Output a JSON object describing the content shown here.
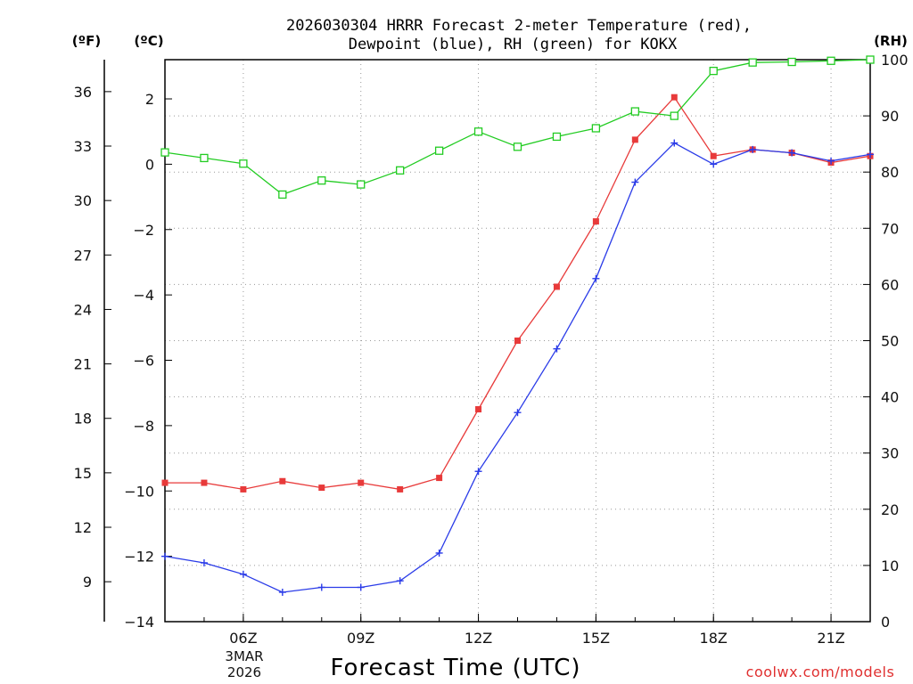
{
  "chart_data": {
    "type": "line",
    "title": "2026030304 HRRR Forecast 2-meter Temperature (red),",
    "subtitle": "Dewpoint (blue), RH (green) for KOKX",
    "xlabel": "Forecast Time (UTC)",
    "credit": "coolwx.com/models",
    "units": {
      "fahrenheit": "(ºF)",
      "celsius": "(ºC)",
      "rh": "(RH)"
    },
    "date_label": [
      "3MAR",
      "2026"
    ],
    "x_hours": [
      4,
      5,
      6,
      7,
      8,
      9,
      10,
      11,
      12,
      13,
      14,
      15,
      16,
      17,
      18,
      19,
      20,
      21,
      22
    ],
    "xlim": [
      4,
      22
    ],
    "x_ticks": [
      {
        "hour": 6,
        "label": "06Z"
      },
      {
        "hour": 9,
        "label": "09Z"
      },
      {
        "hour": 12,
        "label": "12Z"
      },
      {
        "hour": 15,
        "label": "15Z"
      },
      {
        "hour": 18,
        "label": "18Z"
      },
      {
        "hour": 21,
        "label": "21Z"
      }
    ],
    "ylim_c": [
      -14,
      3.2
    ],
    "y_ticks_c": [
      "2",
      "0",
      "−2",
      "−4",
      "−6",
      "−8",
      "−10",
      "−12",
      "−14"
    ],
    "y_ticks_c_values": [
      2,
      0,
      -2,
      -4,
      -6,
      -8,
      -10,
      -12,
      -14
    ],
    "y_ticks_f": [
      "36",
      "33",
      "30",
      "27",
      "24",
      "21",
      "18",
      "15",
      "12",
      "9"
    ],
    "y_ticks_f_values": [
      36,
      33,
      30,
      27,
      24,
      21,
      18,
      15,
      12,
      9
    ],
    "ylim_rh": [
      0,
      100
    ],
    "y_ticks_rh": [
      "100",
      "90",
      "80",
      "70",
      "60",
      "50",
      "40",
      "30",
      "20",
      "10",
      "0"
    ],
    "y_ticks_rh_values": [
      100,
      90,
      80,
      70,
      60,
      50,
      40,
      30,
      20,
      10,
      0
    ],
    "series": [
      {
        "name": "Temperature",
        "axis": "celsius",
        "color": "#e83a3a",
        "marker": "filled-square",
        "values": [
          -9.75,
          -9.75,
          -9.95,
          -9.7,
          -9.9,
          -9.75,
          -9.95,
          -9.6,
          -7.5,
          -5.4,
          -3.75,
          -1.75,
          0.75,
          2.05,
          0.25,
          0.45,
          0.35,
          0.05,
          0.25
        ]
      },
      {
        "name": "Dewpoint",
        "axis": "celsius",
        "color": "#2a3be8",
        "marker": "plus",
        "values": [
          -12.0,
          -12.2,
          -12.55,
          -13.1,
          -12.95,
          -12.95,
          -12.75,
          -11.9,
          -9.4,
          -7.6,
          -5.65,
          -3.5,
          -0.55,
          0.65,
          0.0,
          0.45,
          0.35,
          0.1,
          0.3
        ]
      },
      {
        "name": "RH",
        "axis": "rh",
        "color": "#22cc22",
        "marker": "open-square",
        "values": [
          83.5,
          82.5,
          81.5,
          76.0,
          78.5,
          77.8,
          80.3,
          83.8,
          87.2,
          84.5,
          86.3,
          87.8,
          90.8,
          90.0,
          98.0,
          99.5,
          99.6,
          99.8,
          100.0
        ]
      }
    ]
  }
}
